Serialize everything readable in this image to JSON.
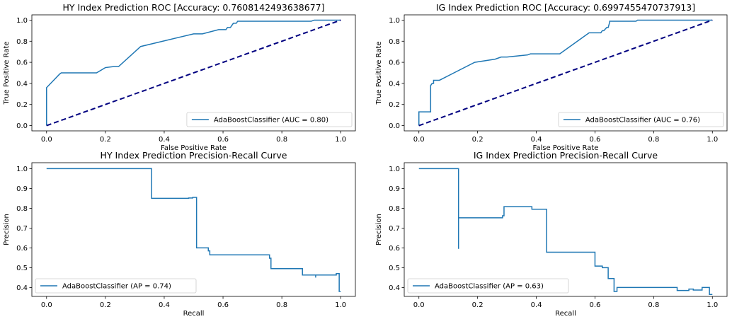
{
  "chart_data": [
    {
      "type": "line",
      "title": "HY Index Prediction ROC [Accuracy: 0.7608142493638677]",
      "xlabel": "False Positive Rate",
      "ylabel": "True Positive Rate",
      "xlim": [
        -0.05,
        1.05
      ],
      "ylim": [
        -0.05,
        1.05
      ],
      "xticks": [
        0.0,
        0.2,
        0.4,
        0.6,
        0.8,
        1.0
      ],
      "xtick_labels": [
        "0.0",
        "0.2",
        "0.4",
        "0.6",
        "0.8",
        "1.0"
      ],
      "yticks": [
        0.0,
        0.2,
        0.4,
        0.6,
        0.8,
        1.0
      ],
      "ytick_labels": [
        "0.0",
        "0.2",
        "0.4",
        "0.6",
        "0.8",
        "1.0"
      ],
      "grid": false,
      "legend_position": "lower-right",
      "series": [
        {
          "name": "AdaBoostClassifier (AUC = 0.80)",
          "color": "#1f77b4",
          "style": "solid",
          "x": [
            0.0,
            0.0,
            0.045,
            0.05,
            0.17,
            0.2,
            0.23,
            0.245,
            0.32,
            0.5,
            0.53,
            0.585,
            0.61,
            0.615,
            0.625,
            0.63,
            0.635,
            0.645,
            0.65,
            0.9,
            0.91,
            0.97,
            1.0
          ],
          "y": [
            0.0,
            0.36,
            0.49,
            0.5,
            0.5,
            0.55,
            0.56,
            0.56,
            0.75,
            0.87,
            0.87,
            0.91,
            0.91,
            0.93,
            0.93,
            0.95,
            0.97,
            0.97,
            0.99,
            0.99,
            1.0,
            1.0,
            1.0
          ]
        },
        {
          "name": "",
          "color": "#000080",
          "style": "dashed",
          "x": [
            0.0,
            1.0
          ],
          "y": [
            0.0,
            1.0
          ]
        }
      ]
    },
    {
      "type": "line",
      "title": "IG Index Prediction ROC [Accuracy: 0.6997455470737913]",
      "xlabel": "False Positive Rate",
      "ylabel": "True Positive Rate",
      "xlim": [
        -0.05,
        1.05
      ],
      "ylim": [
        -0.05,
        1.05
      ],
      "xticks": [
        0.0,
        0.2,
        0.4,
        0.6,
        0.8,
        1.0
      ],
      "xtick_labels": [
        "0.0",
        "0.2",
        "0.4",
        "0.6",
        "0.8",
        "1.0"
      ],
      "yticks": [
        0.0,
        0.2,
        0.4,
        0.6,
        0.8,
        1.0
      ],
      "ytick_labels": [
        "0.0",
        "0.2",
        "0.4",
        "0.6",
        "0.8",
        "1.0"
      ],
      "grid": false,
      "legend_position": "lower-right",
      "series": [
        {
          "name": "AdaBoostClassifier (AUC = 0.76)",
          "color": "#1f77b4",
          "style": "solid",
          "x": [
            0.0,
            0.0,
            0.04,
            0.04,
            0.045,
            0.05,
            0.05,
            0.07,
            0.19,
            0.26,
            0.28,
            0.3,
            0.37,
            0.38,
            0.48,
            0.58,
            0.62,
            0.625,
            0.63,
            0.64,
            0.645,
            0.645,
            0.65,
            0.65,
            0.74,
            0.745,
            1.0
          ],
          "y": [
            0.0,
            0.13,
            0.13,
            0.38,
            0.4,
            0.4,
            0.43,
            0.43,
            0.6,
            0.63,
            0.65,
            0.65,
            0.67,
            0.68,
            0.68,
            0.88,
            0.88,
            0.9,
            0.9,
            0.93,
            0.93,
            0.93,
            0.98,
            0.99,
            0.99,
            1.0,
            1.0
          ]
        },
        {
          "name": "",
          "color": "#000080",
          "style": "dashed",
          "x": [
            0.0,
            1.0
          ],
          "y": [
            0.0,
            1.0
          ]
        }
      ]
    },
    {
      "type": "line",
      "title": "HY Index Prediction Precision-Recall Curve",
      "xlabel": "Recall",
      "ylabel": "Precision",
      "xlim": [
        -0.05,
        1.05
      ],
      "ylim": [
        0.355,
        1.03
      ],
      "xticks": [
        0.0,
        0.2,
        0.4,
        0.6,
        0.8,
        1.0
      ],
      "xtick_labels": [
        "0.0",
        "0.2",
        "0.4",
        "0.6",
        "0.8",
        "1.0"
      ],
      "yticks": [
        0.4,
        0.5,
        0.6,
        0.7,
        0.8,
        0.9,
        1.0
      ],
      "ytick_labels": [
        "0.4",
        "0.5",
        "0.6",
        "0.7",
        "0.8",
        "0.9",
        "1.0"
      ],
      "grid": false,
      "legend_position": "lower-left",
      "series": [
        {
          "name": "AdaBoostClassifier (AP = 0.74)",
          "color": "#1f77b4",
          "style": "step",
          "x": [
            0.0,
            0.357,
            0.357,
            0.483,
            0.483,
            0.497,
            0.497,
            0.51,
            0.51,
            0.55,
            0.55,
            0.555,
            0.555,
            0.758,
            0.758,
            0.763,
            0.763,
            0.87,
            0.87,
            0.915,
            0.915,
            0.915,
            0.915,
            0.985,
            0.985,
            0.995,
            0.995,
            1.0
          ],
          "y": [
            1.0,
            1.0,
            0.85,
            0.85,
            0.852,
            0.852,
            0.855,
            0.855,
            0.6,
            0.6,
            0.585,
            0.585,
            0.565,
            0.565,
            0.548,
            0.548,
            0.495,
            0.495,
            0.463,
            0.463,
            0.45,
            0.45,
            0.463,
            0.463,
            0.47,
            0.47,
            0.38,
            0.38
          ]
        }
      ]
    },
    {
      "type": "line",
      "title": "IG Index Prediction Precision-Recall Curve",
      "xlabel": "Recall",
      "ylabel": "Precision",
      "xlim": [
        -0.05,
        1.05
      ],
      "ylim": [
        0.355,
        1.03
      ],
      "xticks": [
        0.0,
        0.2,
        0.4,
        0.6,
        0.8,
        1.0
      ],
      "xtick_labels": [
        "0.0",
        "0.2",
        "0.4",
        "0.6",
        "0.8",
        "1.0"
      ],
      "yticks": [
        0.4,
        0.5,
        0.6,
        0.7,
        0.8,
        0.9,
        1.0
      ],
      "ytick_labels": [
        "0.4",
        "0.5",
        "0.6",
        "0.7",
        "0.8",
        "0.9",
        "1.0"
      ],
      "grid": false,
      "legend_position": "lower-left",
      "series": [
        {
          "name": "AdaBoostClassifier (AP = 0.63)",
          "color": "#1f77b4",
          "style": "step",
          "x": [
            0.0,
            0.135,
            0.135,
            0.135,
            0.135,
            0.285,
            0.285,
            0.29,
            0.29,
            0.385,
            0.385,
            0.435,
            0.435,
            0.6,
            0.6,
            0.625,
            0.625,
            0.645,
            0.645,
            0.665,
            0.665,
            0.675,
            0.675,
            0.88,
            0.88,
            0.92,
            0.92,
            0.935,
            0.935,
            0.965,
            0.965,
            0.99,
            0.99,
            1.0
          ],
          "y": [
            1.0,
            1.0,
            0.595,
            0.595,
            0.752,
            0.752,
            0.762,
            0.762,
            0.808,
            0.808,
            0.795,
            0.795,
            0.578,
            0.578,
            0.508,
            0.508,
            0.5,
            0.5,
            0.445,
            0.445,
            0.38,
            0.38,
            0.4,
            0.4,
            0.385,
            0.385,
            0.392,
            0.392,
            0.387,
            0.387,
            0.4,
            0.4,
            0.365,
            0.365
          ]
        }
      ]
    }
  ]
}
